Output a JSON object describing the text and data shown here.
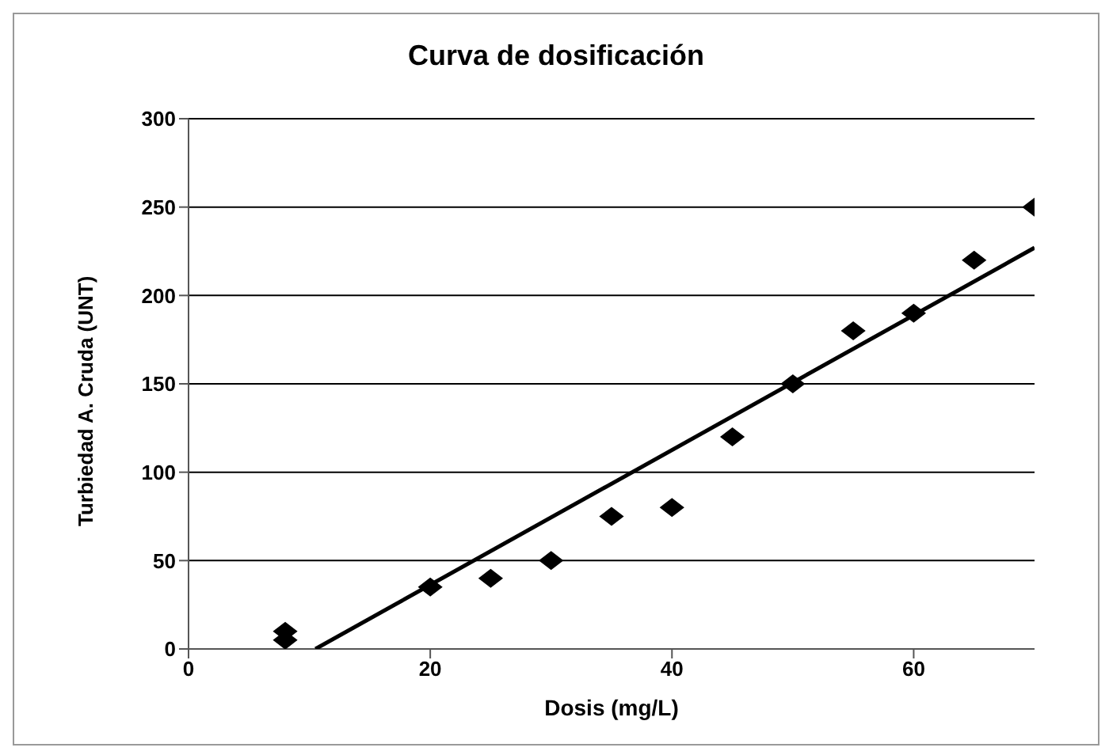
{
  "chart_data": {
    "type": "scatter",
    "title": "Curva de dosificación",
    "xlabel": "Dosis (mg/L)",
    "ylabel": "Turbiedad A. Cruda (UNT)",
    "series": [
      {
        "color": "#000000",
        "marker": "diamond",
        "x": [
          8,
          8,
          20,
          25,
          30,
          35,
          40,
          45,
          50,
          55,
          60,
          65,
          70
        ],
        "values": [
          5,
          10,
          35,
          40,
          50,
          75,
          80,
          120,
          150,
          180,
          190,
          220,
          250
        ]
      },
      {
        "type": "line",
        "color": "#000000",
        "marker": "none",
        "line_style": "solid",
        "x": [
          10.5,
          70
        ],
        "values": [
          0,
          227
        ]
      }
    ],
    "xlim": [
      0,
      70
    ],
    "xticks": [
      0,
      20,
      40,
      60
    ],
    "ylim": [
      0,
      300
    ],
    "yticks": [
      0,
      50,
      100,
      150,
      200,
      250,
      300
    ],
    "grid": "y"
  }
}
